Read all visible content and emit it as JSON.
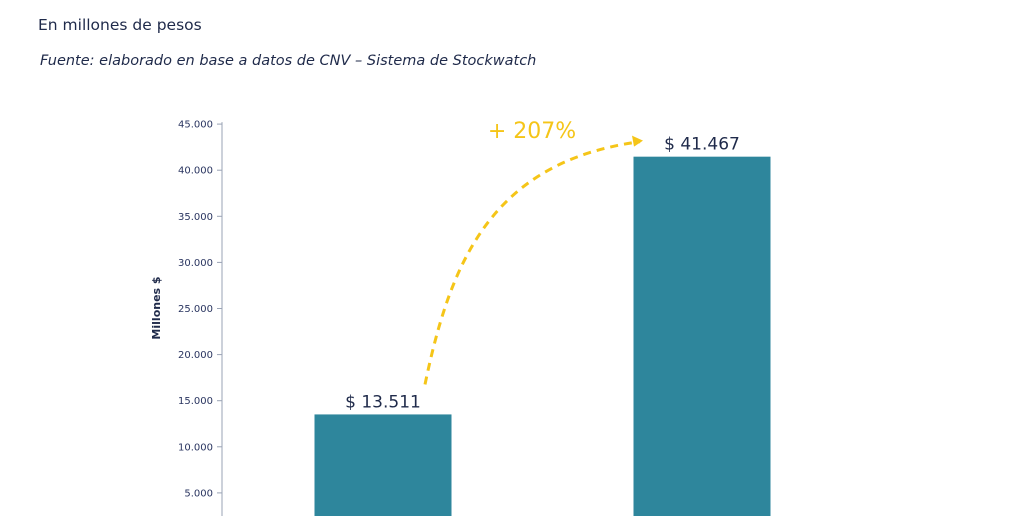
{
  "header": {
    "subtitle": "En millones de pesos",
    "source": "Fuente: elaborado en base a datos de CNV – Sistema de Stockwatch"
  },
  "chart_data": {
    "type": "bar",
    "categories": [
      "",
      ""
    ],
    "series": [
      {
        "values": [
          13511,
          41467
        ],
        "data_labels": [
          "$ 13.511",
          "$ 41.467"
        ],
        "color": "#2e869c"
      }
    ],
    "ylabel": "Millones $",
    "ylim": [
      0,
      45000
    ],
    "yticks": [
      5000,
      10000,
      15000,
      20000,
      25000,
      30000,
      35000,
      40000,
      45000
    ],
    "ytick_labels": [
      "5.000",
      "10.000",
      "15.000",
      "20.000",
      "25.000",
      "30.000",
      "35.000",
      "40.000",
      "45.000"
    ],
    "annotation": {
      "text": "+ 207%",
      "color": "#f5c518"
    },
    "grid": false,
    "legend": "none"
  }
}
